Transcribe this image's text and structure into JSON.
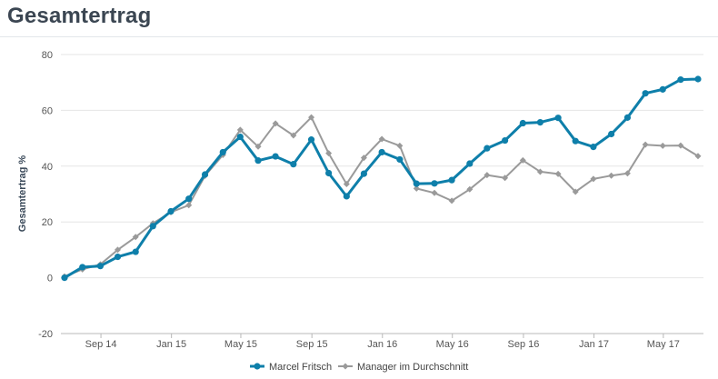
{
  "page": {
    "title": "Gesamtertrag"
  },
  "colors": {
    "series1": "#0e7faa",
    "series2": "#9a9a9a",
    "grid": "#e6e6e6",
    "axis": "#b8b8b8"
  },
  "chart_data": {
    "type": "line",
    "title": "Gesamtertrag",
    "xlabel": "",
    "ylabel": "Gesamtertrag %",
    "ylim": [
      -20,
      80
    ],
    "yticks": [
      -20,
      0,
      20,
      40,
      60,
      80
    ],
    "x": [
      "2014-06-30",
      "2014-07-31",
      "2014-08-31",
      "2014-09-30",
      "2014-10-31",
      "2014-11-30",
      "2014-12-31",
      "2015-01-31",
      "2015-02-28",
      "2015-03-31",
      "2015-04-30",
      "2015-05-31",
      "2015-06-30",
      "2015-07-31",
      "2015-08-31",
      "2015-09-30",
      "2015-10-31",
      "2015-11-30",
      "2015-12-31",
      "2016-01-31",
      "2016-02-29",
      "2016-03-31",
      "2016-04-30",
      "2016-05-31",
      "2016-06-30",
      "2016-07-31",
      "2016-08-31",
      "2016-09-30",
      "2016-10-31",
      "2016-11-30",
      "2016-12-31",
      "2017-01-31",
      "2017-02-28",
      "2017-03-31",
      "2017-04-30",
      "2017-05-31",
      "2017-06-30"
    ],
    "xlim": [
      "2014-06-30",
      "2017-06-30"
    ],
    "xticks": [
      {
        "label": "Sep 14",
        "date": "2014-09-01"
      },
      {
        "label": "Jan 15",
        "date": "2015-01-01"
      },
      {
        "label": "May 15",
        "date": "2015-05-01"
      },
      {
        "label": "Sep 15",
        "date": "2015-09-01"
      },
      {
        "label": "Jan 16",
        "date": "2016-01-01"
      },
      {
        "label": "May 16",
        "date": "2016-05-01"
      },
      {
        "label": "Sep 16",
        "date": "2016-09-01"
      },
      {
        "label": "Jan 17",
        "date": "2017-01-01"
      },
      {
        "label": "May 17",
        "date": "2017-05-01"
      }
    ],
    "grid": true,
    "legend_position": "bottom-center",
    "series": [
      {
        "name": "Marcel Fritsch",
        "color": "#0e7faa",
        "values": [
          0,
          3.8,
          4.2,
          7.5,
          9.3,
          18.5,
          23.8,
          28.3,
          37,
          45,
          50.5,
          42,
          43.5,
          40.7,
          49.5,
          37.5,
          29.2,
          37.3,
          45,
          42.4,
          33.7,
          33.8,
          35,
          40.9,
          46.4,
          49.2,
          55.4,
          55.7,
          57.3,
          49,
          46.9,
          51.5,
          57.4,
          66.1,
          67.5,
          71,
          71.2
        ]
      },
      {
        "name": "Manager im Durchschnitt",
        "color": "#9a9a9a",
        "values": [
          0.5,
          3,
          4.8,
          10,
          14.6,
          19.5,
          23.5,
          26,
          36.5,
          44,
          53,
          47,
          55.3,
          51,
          57.5,
          44.6,
          33.6,
          43,
          49.7,
          47.3,
          32,
          30.4,
          27.6,
          31.7,
          36.8,
          35.8,
          42.1,
          38,
          37.2,
          30.8,
          35.4,
          36.6,
          37.4,
          47.7,
          47.3,
          47.4,
          43.6
        ]
      }
    ]
  }
}
